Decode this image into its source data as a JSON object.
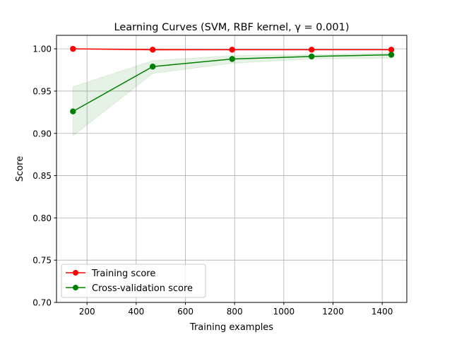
{
  "chart_data": {
    "type": "line",
    "title": "Learning Curves (SVM, RBF kernel, γ = 0.001)",
    "xlabel": "Training examples",
    "ylabel": "Score",
    "xlim": [
      76,
      1500
    ],
    "ylim": [
      0.7,
      1.016
    ],
    "xticks": [
      200,
      400,
      600,
      800,
      1000,
      1200,
      1400
    ],
    "yticks": [
      0.7,
      0.75,
      0.8,
      0.85,
      0.9,
      0.95,
      1.0
    ],
    "xtick_labels": [
      "200",
      "400",
      "600",
      "800",
      "1000",
      "1200",
      "1400"
    ],
    "ytick_labels": [
      "0.70",
      "0.75",
      "0.80",
      "0.85",
      "0.90",
      "0.95",
      "1.00"
    ],
    "grid": true,
    "legend_position": "lower-left",
    "x": [
      143,
      467,
      790,
      1113,
      1437
    ],
    "series": [
      {
        "name": "Training score",
        "color": "#ff0000",
        "values": [
          1.0,
          0.999,
          0.999,
          0.999,
          0.999
        ],
        "band_upper": [
          1.0,
          1.0,
          0.9995,
          0.9995,
          0.9995
        ],
        "band_lower": [
          1.0,
          0.998,
          0.9985,
          0.9985,
          0.9985
        ]
      },
      {
        "name": "Cross-validation score",
        "color": "#008000",
        "values": [
          0.926,
          0.979,
          0.988,
          0.991,
          0.993
        ],
        "band_upper": [
          0.955,
          0.986,
          0.992,
          0.993,
          0.995
        ],
        "band_lower": [
          0.897,
          0.971,
          0.983,
          0.988,
          0.989
        ]
      }
    ]
  }
}
